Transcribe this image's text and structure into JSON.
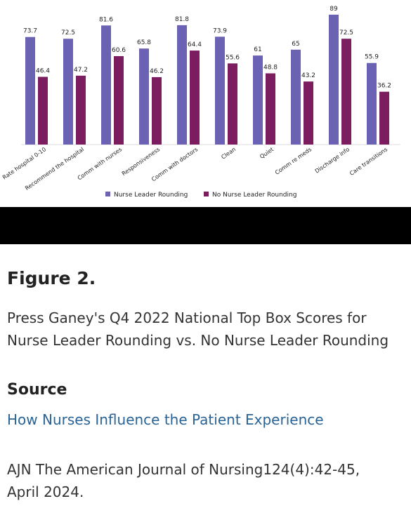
{
  "chart_data": {
    "type": "bar",
    "categories": [
      "Rate hospital 0-10",
      "Recommend the hospital",
      "Comm with nurses",
      "Responsiveness",
      "Comm with doctors",
      "Clean",
      "Quiet",
      "Comm re meds",
      "Discharge info",
      "Care transitions"
    ],
    "series": [
      {
        "name": "Nurse Leader Rounding",
        "color": "#6c62b3",
        "values": [
          73.7,
          72.5,
          81.6,
          65.8,
          81.8,
          73.9,
          61,
          65,
          89,
          55.9
        ]
      },
      {
        "name": "No Nurse Leader Rounding",
        "color": "#7b1d5e",
        "values": [
          46.4,
          47.2,
          60.6,
          46.2,
          64.4,
          55.6,
          48.8,
          43.2,
          72.5,
          36.2
        ]
      }
    ]
  },
  "figure": {
    "label": "Figure 2.",
    "caption": "Press Ganey's Q4 2022 National Top Box Scores for Nurse Leader Rounding vs. No Nurse Leader Rounding",
    "source_heading": "Source",
    "source_link": "How Nurses Influence the Patient Experience",
    "citation": "AJN The American Journal of Nursing124(4):42-45, April 2024."
  }
}
